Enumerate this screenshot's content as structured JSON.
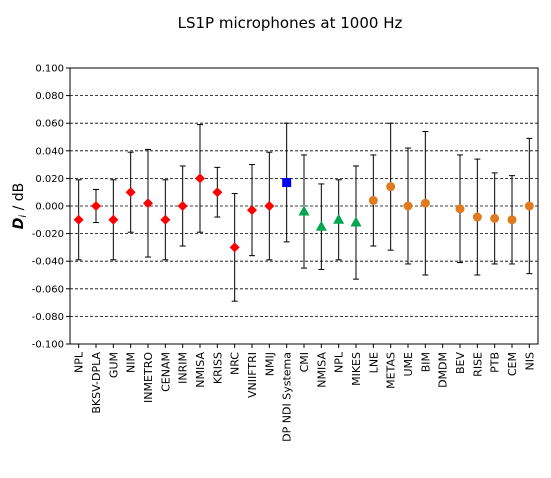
{
  "chart_data": {
    "type": "scatter",
    "title": "LS1P microphones at 1000 Hz",
    "ylabel_main": "D",
    "ylabel_sub": "i",
    "ylabel_unit": " / dB",
    "xlabel": "",
    "ylim": [
      -0.1,
      0.1
    ],
    "ytick_step": 0.02,
    "yticks": [
      "0.100",
      "0.080",
      "0.060",
      "0.040",
      "0.020",
      "0.000",
      "-0.020",
      "-0.040",
      "-0.060",
      "-0.080",
      "-0.100"
    ],
    "grid": true,
    "colors": {
      "red_diamond": "#ff0000",
      "blue_square": "#0000ff",
      "green_triangle": "#00a651",
      "orange_circle": "#e07b1f"
    },
    "categories": [
      "NPL",
      "BKSV-DPLA",
      "GUM",
      "NIM",
      "INMETRO",
      "CENAM",
      "INRIM",
      "NMISA",
      "KRISS",
      "NRC",
      "VNIIFTRI",
      "NMIJ",
      "DP NDI Systema",
      "CMI",
      "NMISA",
      "NPL",
      "MIKES",
      "LNE",
      "METAS",
      "UME",
      "BIM",
      "DMDM",
      "BEV",
      "RISE",
      "PTB",
      "CEM",
      "NIS"
    ],
    "points": [
      {
        "value": -0.01,
        "err": 0.029,
        "marker": "red_diamond"
      },
      {
        "value": 0.0,
        "err": 0.012,
        "marker": "red_diamond"
      },
      {
        "value": -0.01,
        "err": 0.029,
        "marker": "red_diamond"
      },
      {
        "value": 0.01,
        "err": 0.029,
        "marker": "red_diamond"
      },
      {
        "value": 0.002,
        "err": 0.039,
        "marker": "red_diamond"
      },
      {
        "value": -0.01,
        "err": 0.029,
        "marker": "red_diamond"
      },
      {
        "value": 0.0,
        "err": 0.029,
        "marker": "red_diamond"
      },
      {
        "value": 0.02,
        "err": 0.039,
        "marker": "red_diamond"
      },
      {
        "value": 0.01,
        "err": 0.018,
        "marker": "red_diamond"
      },
      {
        "value": -0.03,
        "err": 0.039,
        "marker": "red_diamond"
      },
      {
        "value": -0.003,
        "err": 0.033,
        "marker": "red_diamond"
      },
      {
        "value": 0.0,
        "err": 0.039,
        "marker": "red_diamond"
      },
      {
        "value": 0.017,
        "err": 0.043,
        "marker": "blue_square"
      },
      {
        "value": -0.004,
        "err": 0.041,
        "marker": "green_triangle"
      },
      {
        "value": -0.015,
        "err": 0.031,
        "marker": "green_triangle"
      },
      {
        "value": -0.01,
        "err": 0.029,
        "marker": "green_triangle"
      },
      {
        "value": -0.012,
        "err": 0.041,
        "marker": "green_triangle"
      },
      {
        "value": 0.004,
        "err": 0.033,
        "marker": "orange_circle"
      },
      {
        "value": 0.014,
        "err": 0.046,
        "marker": "orange_circle"
      },
      {
        "value": 0.0,
        "err": 0.042,
        "marker": "orange_circle"
      },
      {
        "value": 0.002,
        "err": 0.052,
        "marker": "orange_circle"
      },
      {
        "value": null,
        "err": null,
        "marker": "none"
      },
      {
        "value": -0.002,
        "err": 0.039,
        "marker": "orange_circle"
      },
      {
        "value": -0.008,
        "err": 0.042,
        "marker": "orange_circle"
      },
      {
        "value": -0.009,
        "err": 0.033,
        "marker": "orange_circle"
      },
      {
        "value": -0.01,
        "err": 0.032,
        "marker": "orange_circle"
      },
      {
        "value": 0.0,
        "err": 0.049,
        "marker": "orange_circle"
      }
    ]
  }
}
